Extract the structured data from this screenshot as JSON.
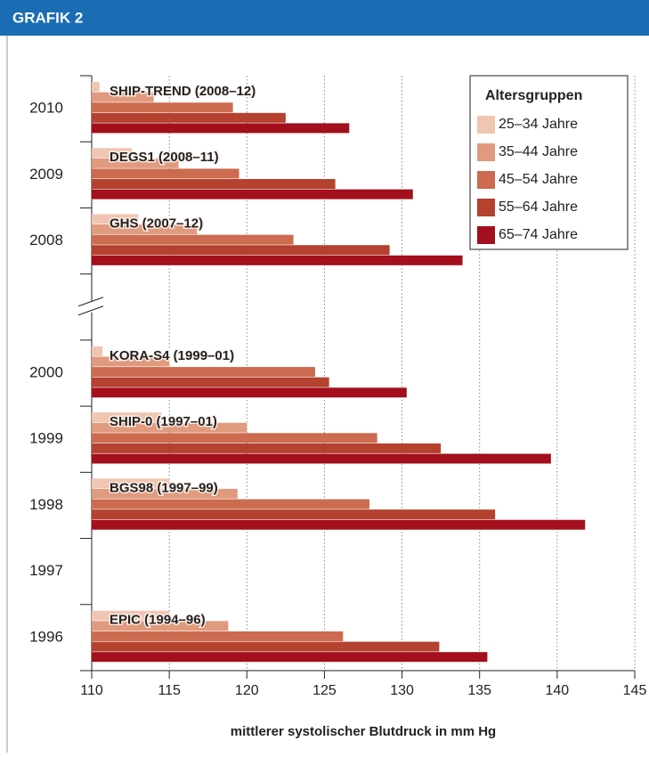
{
  "header": "GRAFIK 2",
  "chart_data": {
    "type": "bar",
    "orientation": "horizontal",
    "categories": [
      "2010",
      "2009",
      "2008",
      null,
      "2000",
      "1999",
      "1998",
      "1997",
      "1996"
    ],
    "study_labels": [
      "SHIP-TREND (2008–12)",
      "DEGS1 (2008–11)",
      "GHS (2007–12)",
      null,
      "KORA-S4 (1999–01)",
      "SHIP-0 (1997–01)",
      "BGS98 (1997–99)",
      null,
      "EPIC (1994–96)"
    ],
    "legend_title": "Altersgruppen",
    "legend_position": "upper right",
    "series": [
      {
        "name": "25–34 Jahre",
        "color": "#f0c6b2",
        "values": [
          110.5,
          112.6,
          113.0,
          null,
          110.7,
          114.5,
          115.0,
          null,
          115.0
        ]
      },
      {
        "name": "35–44 Jahre",
        "color": "#e09a7e",
        "values": [
          114.0,
          115.6,
          116.8,
          null,
          115.0,
          120.0,
          119.4,
          null,
          118.8
        ]
      },
      {
        "name": "45–54 Jahre",
        "color": "#cc6b4f",
        "values": [
          119.1,
          119.5,
          123.0,
          null,
          124.4,
          128.4,
          127.9,
          null,
          126.2
        ]
      },
      {
        "name": "55–64 Jahre",
        "color": "#b5412f",
        "values": [
          122.5,
          125.7,
          129.2,
          null,
          125.3,
          132.5,
          136.0,
          null,
          132.4
        ]
      },
      {
        "name": "65–74 Jahre",
        "color": "#a30f1c",
        "values": [
          126.6,
          130.7,
          133.9,
          null,
          130.3,
          139.6,
          141.8,
          null,
          135.5
        ]
      }
    ],
    "xlim": [
      110,
      145
    ],
    "xticks": [
      110,
      115,
      120,
      125,
      130,
      135,
      140,
      145
    ],
    "xlabel": "mittlerer systolischer Blutdruck in mm Hg",
    "grid": true
  }
}
